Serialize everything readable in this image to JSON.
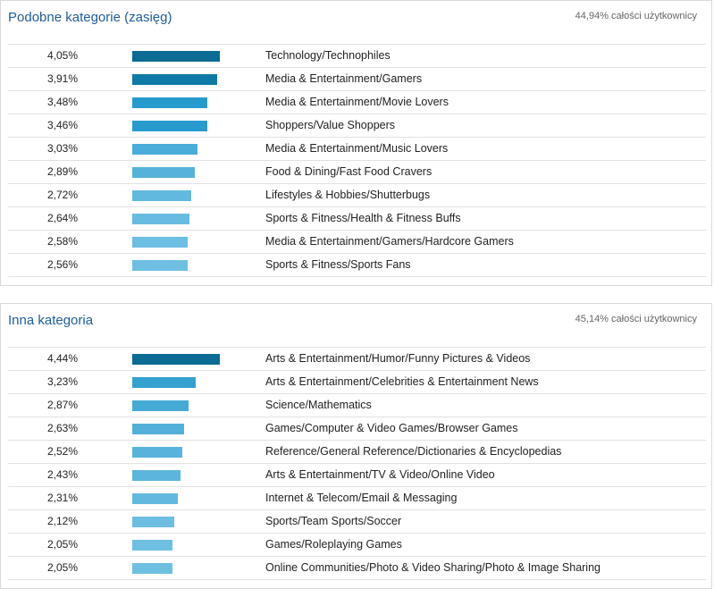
{
  "panels": [
    {
      "title": "Podobne kategorie (zasięg)",
      "share": "44,94% całości użytkownicy",
      "rows": [
        {
          "value": 4.05,
          "label": "4,05%",
          "category": "Technology/Technophiles"
        },
        {
          "value": 3.91,
          "label": "3,91%",
          "category": "Media & Entertainment/Gamers"
        },
        {
          "value": 3.48,
          "label": "3,48%",
          "category": "Media & Entertainment/Movie Lovers"
        },
        {
          "value": 3.46,
          "label": "3,46%",
          "category": "Shoppers/Value Shoppers"
        },
        {
          "value": 3.03,
          "label": "3,03%",
          "category": "Media & Entertainment/Music Lovers"
        },
        {
          "value": 2.89,
          "label": "2,89%",
          "category": "Food & Dining/Fast Food Cravers"
        },
        {
          "value": 2.72,
          "label": "2,72%",
          "category": "Lifestyles & Hobbies/Shutterbugs"
        },
        {
          "value": 2.64,
          "label": "2,64%",
          "category": "Sports & Fitness/Health & Fitness Buffs"
        },
        {
          "value": 2.58,
          "label": "2,58%",
          "category": "Media & Entertainment/Gamers/Hardcore Gamers"
        },
        {
          "value": 2.56,
          "label": "2,56%",
          "category": "Sports & Fitness/Sports Fans"
        }
      ]
    },
    {
      "title": "Inna kategoria",
      "share": "45,14% całości użytkownicy",
      "rows": [
        {
          "value": 4.44,
          "label": "4,44%",
          "category": "Arts & Entertainment/Humor/Funny Pictures & Videos"
        },
        {
          "value": 3.23,
          "label": "3,23%",
          "category": "Arts & Entertainment/Celebrities & Entertainment News"
        },
        {
          "value": 2.87,
          "label": "2,87%",
          "category": "Science/Mathematics"
        },
        {
          "value": 2.63,
          "label": "2,63%",
          "category": "Games/Computer & Video Games/Browser Games"
        },
        {
          "value": 2.52,
          "label": "2,52%",
          "category": "Reference/General Reference/Dictionaries & Encyclopedias"
        },
        {
          "value": 2.43,
          "label": "2,43%",
          "category": "Arts & Entertainment/TV & Video/Online Video"
        },
        {
          "value": 2.31,
          "label": "2,31%",
          "category": "Internet & Telecom/Email & Messaging"
        },
        {
          "value": 2.12,
          "label": "2,12%",
          "category": "Sports/Team Sports/Soccer"
        },
        {
          "value": 2.05,
          "label": "2,05%",
          "category": "Games/Roleplaying Games"
        },
        {
          "value": 2.05,
          "label": "2,05%",
          "category": "Online Communities/Photo & Video Sharing/Photo & Image Sharing"
        }
      ]
    }
  ],
  "chart_data": [
    {
      "type": "bar",
      "title": "Podobne kategorie (zasięg)",
      "categories": [
        "Technology/Technophiles",
        "Media & Entertainment/Gamers",
        "Media & Entertainment/Movie Lovers",
        "Shoppers/Value Shoppers",
        "Media & Entertainment/Music Lovers",
        "Food & Dining/Fast Food Cravers",
        "Lifestyles & Hobbies/Shutterbugs",
        "Sports & Fitness/Health & Fitness Buffs",
        "Media & Entertainment/Gamers/Hardcore Gamers",
        "Sports & Fitness/Sports Fans"
      ],
      "values": [
        4.05,
        3.91,
        3.48,
        3.46,
        3.03,
        2.89,
        2.72,
        2.64,
        2.58,
        2.56
      ],
      "orientation": "horizontal"
    },
    {
      "type": "bar",
      "title": "Inna kategoria",
      "categories": [
        "Arts & Entertainment/Humor/Funny Pictures & Videos",
        "Arts & Entertainment/Celebrities & Entertainment News",
        "Science/Mathematics",
        "Games/Computer & Video Games/Browser Games",
        "Reference/General Reference/Dictionaries & Encyclopedias",
        "Arts & Entertainment/TV & Video/Online Video",
        "Internet & Telecom/Email & Messaging",
        "Sports/Team Sports/Soccer",
        "Games/Roleplaying Games",
        "Online Communities/Photo & Video Sharing/Photo & Image Sharing"
      ],
      "values": [
        4.44,
        3.23,
        2.87,
        2.63,
        2.52,
        2.43,
        2.31,
        2.12,
        2.05,
        2.05
      ],
      "orientation": "horizontal"
    }
  ],
  "colors": {
    "bar_dark": "#0b6b94",
    "bar_mid": "#1692c8",
    "bar_light": "#6fbfe3",
    "title": "#1f5c99"
  }
}
